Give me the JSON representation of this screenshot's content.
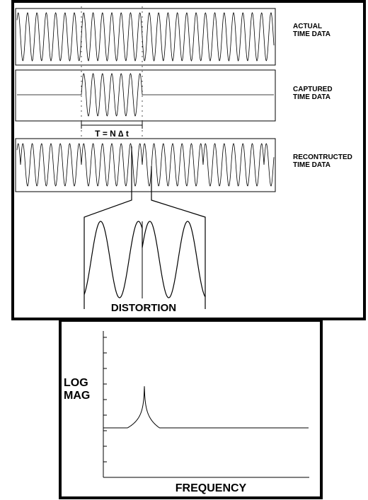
{
  "labels": {
    "actual_line1": "ACTUAL",
    "actual_line2": "TIME DATA",
    "captured_line1": "CAPTURED",
    "captured_line2": "TIME DATA",
    "reconstructed_line1": "RECONTRUCTED",
    "reconstructed_line2": "TIME DATA",
    "period": "T = N ∆ t",
    "distortion": "DISTORTION"
  },
  "spectrum": {
    "ylabel_line1": "LOG",
    "ylabel_line2": "MAG",
    "xlabel": "FREQUENCY"
  },
  "signal": {
    "cycles_in_window": 6.5,
    "cycles_zoomed": 3.2
  }
}
